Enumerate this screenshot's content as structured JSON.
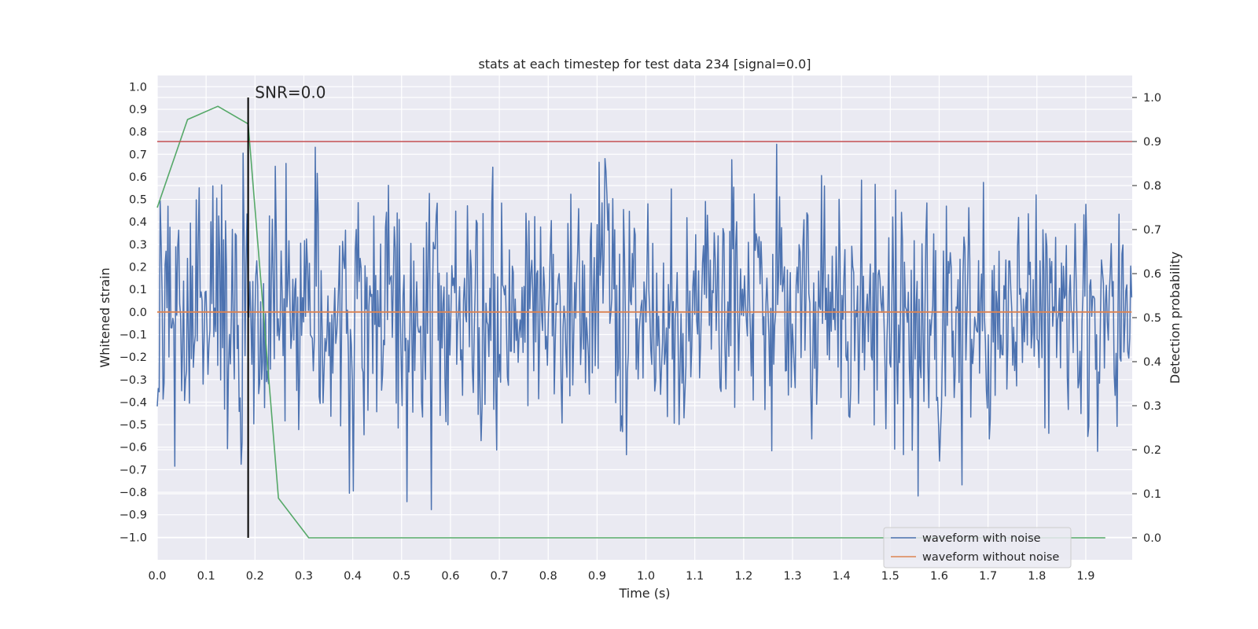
{
  "chart_data": {
    "type": "line",
    "title": "stats at each timestep for test data 234 [signal=0.0]",
    "xlabel": "Time (s)",
    "ylabel": "Whitened strain",
    "y2label": "Detection probability",
    "xlim": [
      0.0,
      1.995
    ],
    "ylim": [
      -1.1,
      1.05
    ],
    "y2lim": [
      -0.05,
      1.05
    ],
    "x_ticks": [
      "0.0",
      "0.1",
      "0.2",
      "0.3",
      "0.4",
      "0.5",
      "0.6",
      "0.7",
      "0.8",
      "0.9",
      "1.0",
      "1.1",
      "1.2",
      "1.3",
      "1.4",
      "1.5",
      "1.6",
      "1.7",
      "1.8",
      "1.9"
    ],
    "y_ticks": [
      "1.0",
      "0.9",
      "0.8",
      "0.7",
      "0.6",
      "0.5",
      "0.4",
      "0.3",
      "0.2",
      "0.1",
      "0.0",
      "-0.1",
      "-0.2",
      "-0.3",
      "-0.4",
      "-0.5",
      "-0.6",
      "-0.7",
      "-0.8",
      "-0.9",
      "-1.0"
    ],
    "y2_ticks": [
      "1.0",
      "0.9",
      "0.8",
      "0.7",
      "0.6",
      "0.5",
      "0.4",
      "0.3",
      "0.2",
      "0.1",
      "0.0"
    ],
    "series": [
      {
        "name": "waveform with noise",
        "color": "#4c72b0",
        "generated": {
          "n": 1000,
          "t_start": 0.0,
          "t_end": 1.994,
          "amplitude": 0.28,
          "seed": 234,
          "clip": [
            -1.0,
            0.94
          ]
        }
      },
      {
        "name": "waveform without noise",
        "color": "#dd8452",
        "x": [
          0.0,
          1.994
        ],
        "y": [
          0.0,
          0.0
        ]
      },
      {
        "name": "detection probability",
        "axis": "y2",
        "color": "#55a868",
        "x": [
          0.0,
          0.062,
          0.124,
          0.186,
          0.248,
          0.31,
          1.94
        ],
        "y": [
          0.75,
          0.95,
          0.98,
          0.94,
          0.09,
          0.0,
          0.0
        ]
      }
    ],
    "threshold": {
      "axis": "y2",
      "value": 0.9,
      "color": "#c44e52"
    },
    "vline": {
      "x": 0.186,
      "color": "#000000"
    },
    "annotation": {
      "text": "SNR=0.0",
      "x": 0.2,
      "y": 0.95
    },
    "legend": {
      "position": "lower-right",
      "entries": [
        "waveform with noise",
        "waveform without noise"
      ]
    }
  }
}
